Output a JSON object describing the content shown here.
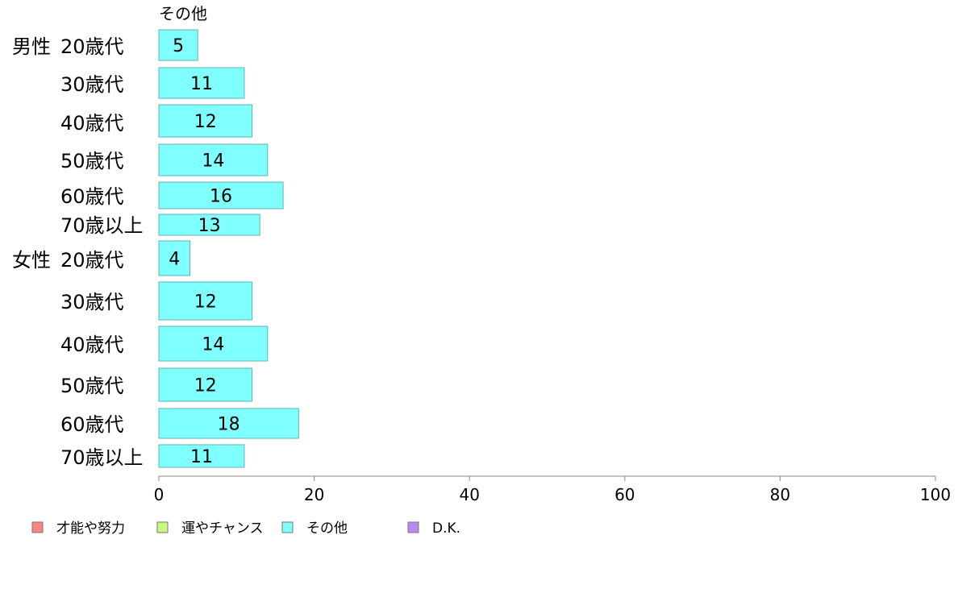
{
  "chart_data": {
    "type": "bar",
    "orientation": "horizontal",
    "stacked": true,
    "title": "",
    "series_header": "その他",
    "groups": [
      {
        "label": "男性",
        "categories": [
          "20歳代",
          "30歳代",
          "40歳代",
          "50歳代",
          "60歳代",
          "70歳以上"
        ]
      },
      {
        "label": "女性",
        "categories": [
          "20歳代",
          "30歳代",
          "40歳代",
          "50歳代",
          "60歳代",
          "70歳以上"
        ]
      }
    ],
    "series": [
      {
        "name": "才能や努力",
        "color": "#f8877f",
        "values": [
          null,
          null,
          null,
          null,
          null,
          null,
          null,
          null,
          null,
          null,
          null,
          null
        ]
      },
      {
        "name": "運やチャンス",
        "color": "#c5fb7e",
        "values": [
          null,
          null,
          null,
          null,
          null,
          null,
          null,
          null,
          null,
          null,
          null,
          null
        ]
      },
      {
        "name": "その他",
        "color": "#80ffff",
        "values": [
          5,
          11,
          12,
          14,
          16,
          13,
          4,
          12,
          14,
          12,
          18,
          11
        ]
      },
      {
        "name": "D.K.",
        "color": "#bb88f5",
        "values": [
          null,
          null,
          null,
          null,
          null,
          null,
          null,
          null,
          null,
          null,
          null,
          null
        ]
      }
    ],
    "xlim": [
      0,
      100
    ],
    "xticks": [
      0,
      20,
      40,
      60,
      80,
      100
    ],
    "grid": false,
    "legend_position": "bottom-left"
  }
}
